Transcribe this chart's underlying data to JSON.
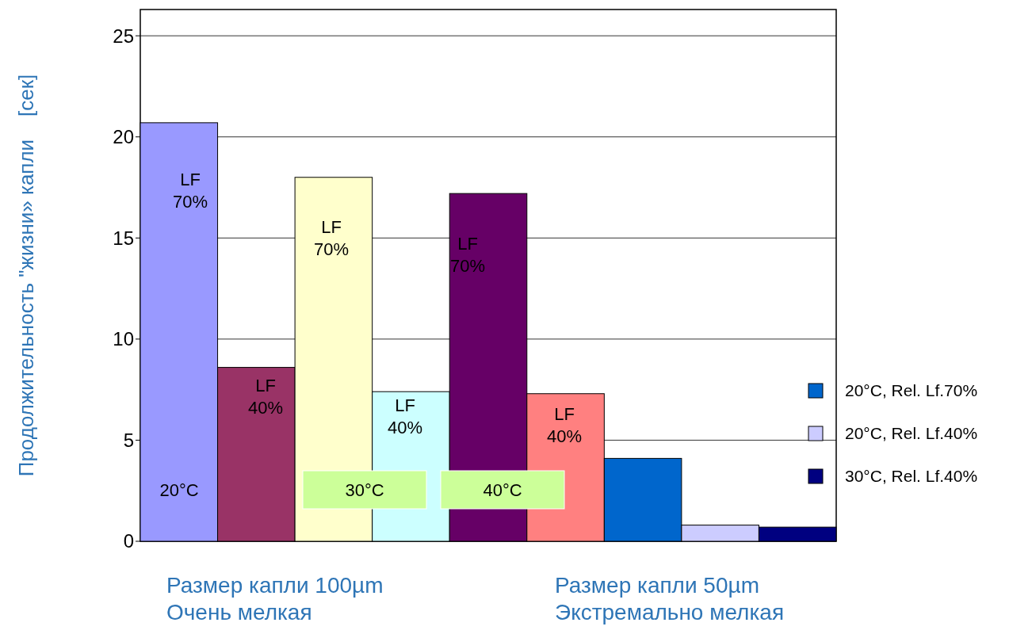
{
  "chart_data": {
    "type": "bar",
    "ylabel": "Продолжительность \"жизни» капли    [сек]",
    "categories": [
      null,
      null,
      null,
      null,
      null,
      null,
      null,
      null,
      null
    ],
    "series": [
      {
        "colors": [
          "#9999ff",
          "#993366",
          "#ffffcc",
          "#ccffff",
          "#660066",
          "#ff8080",
          null,
          null,
          null
        ],
        "values": [
          20.7,
          8.6,
          18.0,
          7.4,
          17.2,
          7.3,
          null,
          null,
          null
        ]
      },
      {
        "name": "20°C, Rel. Lf.70%",
        "color": "#0066cc",
        "values": [
          null,
          null,
          null,
          null,
          null,
          null,
          4.1,
          null,
          null
        ]
      },
      {
        "name": "20°C, Rel. Lf.40%",
        "color": "#ccccff",
        "values": [
          null,
          null,
          null,
          null,
          null,
          null,
          null,
          0.8,
          null
        ]
      },
      {
        "name": "30°C, Rel. Lf.40%",
        "color": "#000080",
        "values": [
          null,
          null,
          null,
          null,
          null,
          null,
          null,
          null,
          0.7
        ]
      }
    ],
    "ylim": [
      0,
      26.3
    ],
    "yticks": [
      0,
      5,
      10,
      15,
      20,
      25
    ],
    "grid": "y",
    "legend": "right",
    "annotations": [
      "LF\n70%",
      "LF\n40%",
      "LF\n70%",
      "LF\n40%",
      "LF\n70%",
      "LF\n40%",
      "20°C",
      "30°C",
      "40°C",
      "Размер капли 100µm\nОчень мелкая",
      "Размер капли 50µm\nЭкстремально мелкая"
    ]
  }
}
